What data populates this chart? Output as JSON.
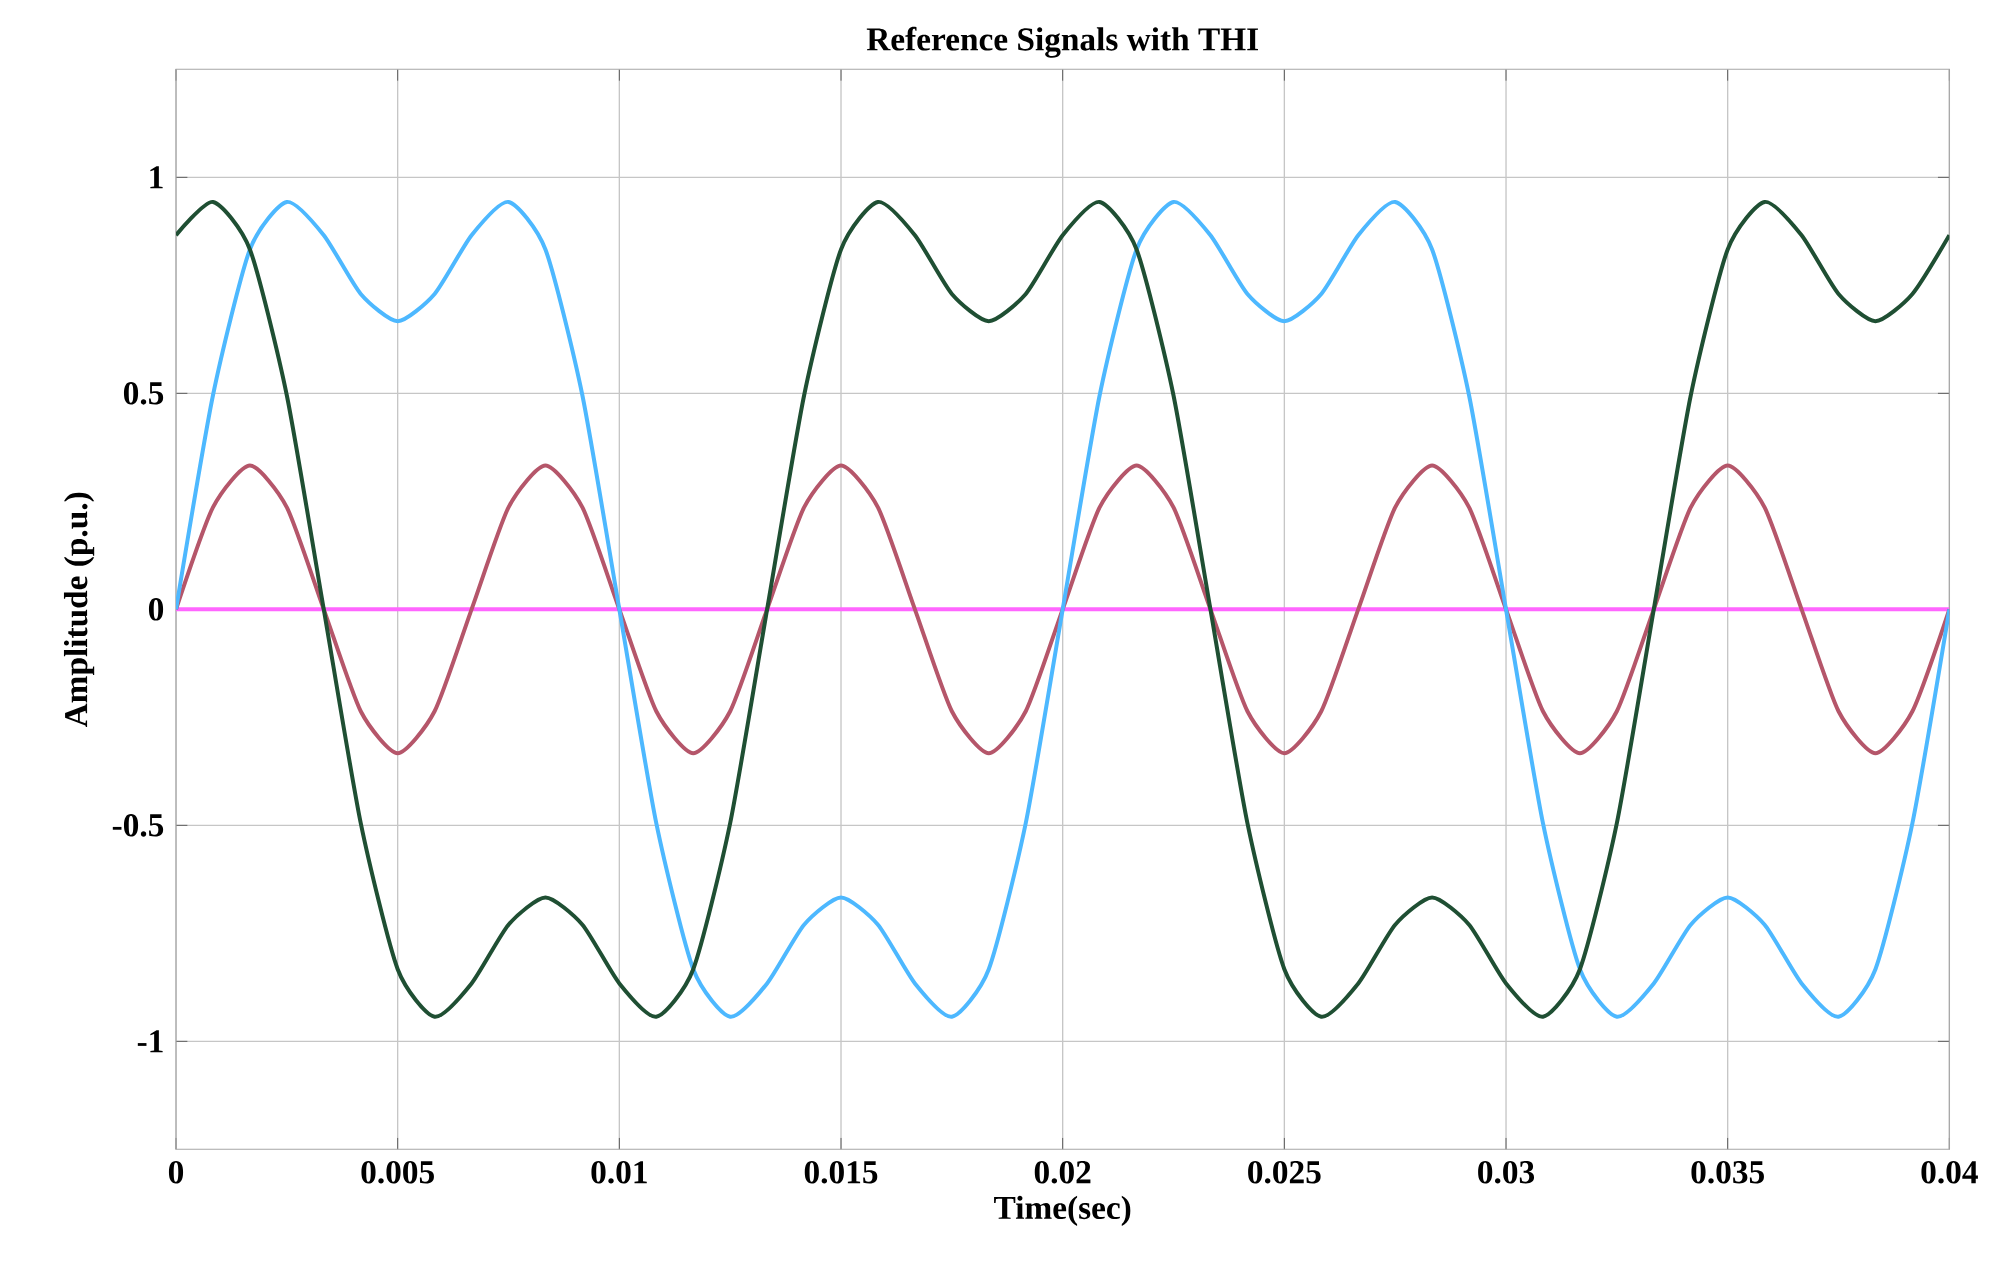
{
  "chart_data": {
    "type": "line",
    "title": "Reference Signals with THI",
    "xlabel": "Time(sec)",
    "ylabel": "Amplitude (p.u.)",
    "x": [
      0,
      0.000833,
      0.001667,
      0.0025,
      0.003333,
      0.004167,
      0.005,
      0.005833,
      0.006667,
      0.0075,
      0.008333,
      0.009167,
      0.01,
      0.010833,
      0.011667,
      0.0125,
      0.013333,
      0.014167,
      0.015,
      0.015833,
      0.016667,
      0.0175,
      0.018333,
      0.019167,
      0.02,
      0.020833,
      0.021667,
      0.0225,
      0.023333,
      0.024167,
      0.025,
      0.025833,
      0.026667,
      0.0275,
      0.028333,
      0.029167,
      0.03,
      0.030833,
      0.031667,
      0.0325,
      0.033333,
      0.034167,
      0.035,
      0.035833,
      0.036667,
      0.0375,
      0.038333,
      0.039167,
      0.04
    ],
    "series": [
      {
        "color": "#ff66ff",
        "x": [
          0,
          0.04
        ],
        "values": [
          0,
          0
        ]
      },
      {
        "color": "#b5566a",
        "values": [
          0,
          0.236,
          0.333,
          0.236,
          0,
          -0.236,
          -0.333,
          -0.236,
          0,
          0.236,
          0.333,
          0.236,
          0,
          -0.236,
          -0.333,
          -0.236,
          0,
          0.236,
          0.333,
          0.236,
          0,
          -0.236,
          -0.333,
          -0.236,
          0,
          0.236,
          0.333,
          0.236,
          0,
          -0.236,
          -0.333,
          -0.236,
          0,
          0.236,
          0.333,
          0.236,
          0,
          -0.236,
          -0.333,
          -0.236,
          0,
          0.236,
          0.333,
          0.236,
          0,
          -0.236,
          -0.333,
          -0.236,
          0
        ]
      },
      {
        "color": "#4db8ff",
        "values": [
          0,
          0.495,
          0.833,
          0.943,
          0.866,
          0.73,
          0.667,
          0.73,
          0.866,
          0.943,
          0.833,
          0.495,
          0,
          -0.495,
          -0.833,
          -0.943,
          -0.866,
          -0.73,
          -0.667,
          -0.73,
          -0.866,
          -0.943,
          -0.833,
          -0.495,
          0,
          0.495,
          0.833,
          0.943,
          0.866,
          0.73,
          0.667,
          0.73,
          0.866,
          0.943,
          0.833,
          0.495,
          0,
          -0.495,
          -0.833,
          -0.943,
          -0.866,
          -0.73,
          -0.667,
          -0.73,
          -0.866,
          -0.943,
          -0.833,
          -0.495,
          0
        ]
      },
      {
        "color": "#1f4f33",
        "values": [
          0.866,
          0.943,
          0.833,
          0.495,
          0,
          -0.495,
          -0.833,
          -0.943,
          -0.866,
          -0.73,
          -0.667,
          -0.73,
          -0.866,
          -0.943,
          -0.833,
          -0.495,
          0,
          0.495,
          0.833,
          0.943,
          0.866,
          0.73,
          0.667,
          0.73,
          0.866,
          0.943,
          0.833,
          0.495,
          0,
          -0.495,
          -0.833,
          -0.943,
          -0.866,
          -0.73,
          -0.667,
          -0.73,
          -0.866,
          -0.943,
          -0.833,
          -0.495,
          0,
          0.495,
          0.833,
          0.943,
          0.866,
          0.73,
          0.667,
          0.73,
          0.866
        ]
      }
    ],
    "xlim": [
      0,
      0.04
    ],
    "ylim": [
      -1.25,
      1.25
    ],
    "xticks": [
      0,
      0.005,
      0.01,
      0.015,
      0.02,
      0.025,
      0.03,
      0.035,
      0.04
    ],
    "yticks": [
      -1,
      -0.5,
      0,
      0.5,
      1
    ],
    "grid": true,
    "marker": "none",
    "line_style": "solid"
  }
}
